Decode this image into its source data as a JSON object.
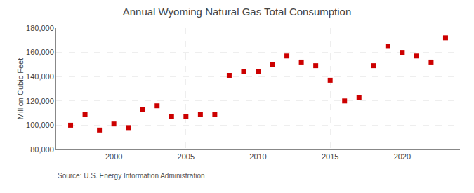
{
  "chart_data": {
    "type": "scatter",
    "title": "Annual Wyoming Natural Gas Total Consumption",
    "ylabel": "Million Cubic Feet",
    "annotations": [
      "Source: U.S. Energy Information Administration"
    ],
    "x": [
      1997,
      1998,
      1999,
      2000,
      2001,
      2002,
      2003,
      2004,
      2005,
      2006,
      2007,
      2008,
      2009,
      2010,
      2011,
      2012,
      2013,
      2014,
      2015,
      2016,
      2017,
      2018,
      2019,
      2020,
      2021,
      2022,
      2023
    ],
    "values": [
      100000,
      109000,
      96000,
      101000,
      98000,
      113000,
      116000,
      107000,
      107000,
      109000,
      109000,
      141000,
      144000,
      144000,
      150000,
      157000,
      152000,
      149000,
      137000,
      120000,
      123000,
      149000,
      165000,
      160000,
      157000,
      152000,
      172000
    ],
    "color": "#cc0000",
    "marker": "square",
    "xlim": [
      1996,
      2024
    ],
    "ylim": [
      80000,
      180000
    ],
    "xticks": [
      2000,
      2005,
      2010,
      2015,
      2020
    ],
    "yticks": [
      {
        "value": 80000,
        "label": "80,000"
      },
      {
        "value": 100000,
        "label": "100,000"
      },
      {
        "value": 120000,
        "label": "120,000"
      },
      {
        "value": 140000,
        "label": "140,000"
      },
      {
        "value": 160000,
        "label": "160,000"
      },
      {
        "value": 180000,
        "label": "180,000"
      }
    ],
    "grid": true
  }
}
